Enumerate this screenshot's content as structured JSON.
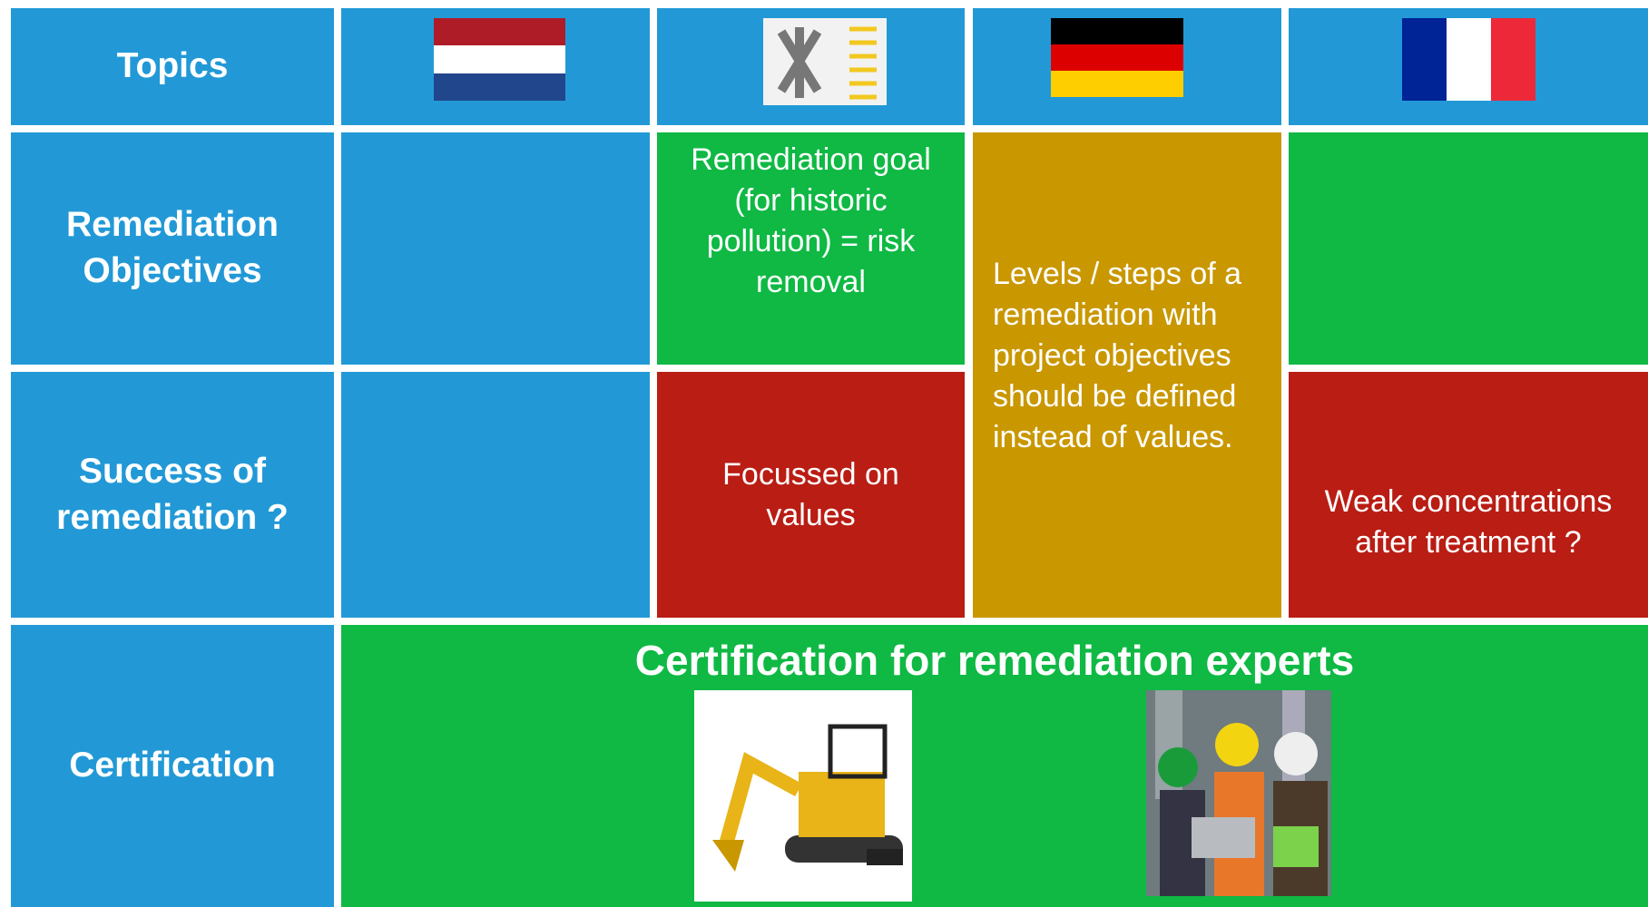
{
  "header": {
    "topics": "Topics"
  },
  "rows": [
    {
      "label": "Remediation Objectives",
      "cells": {
        "flanders": "Remediation goal (for historic pollution) = risk removal",
        "germany": "Levels / steps of a remediation with project objectives should be defined instead of values."
      }
    },
    {
      "label": "Success of remediation ?",
      "cells": {
        "flanders": "Focussed on values",
        "france": "Weak concentrations after treatment ?"
      }
    },
    {
      "label": "Certification",
      "cells": {
        "all": "Certification for remediation experts"
      }
    }
  ]
}
